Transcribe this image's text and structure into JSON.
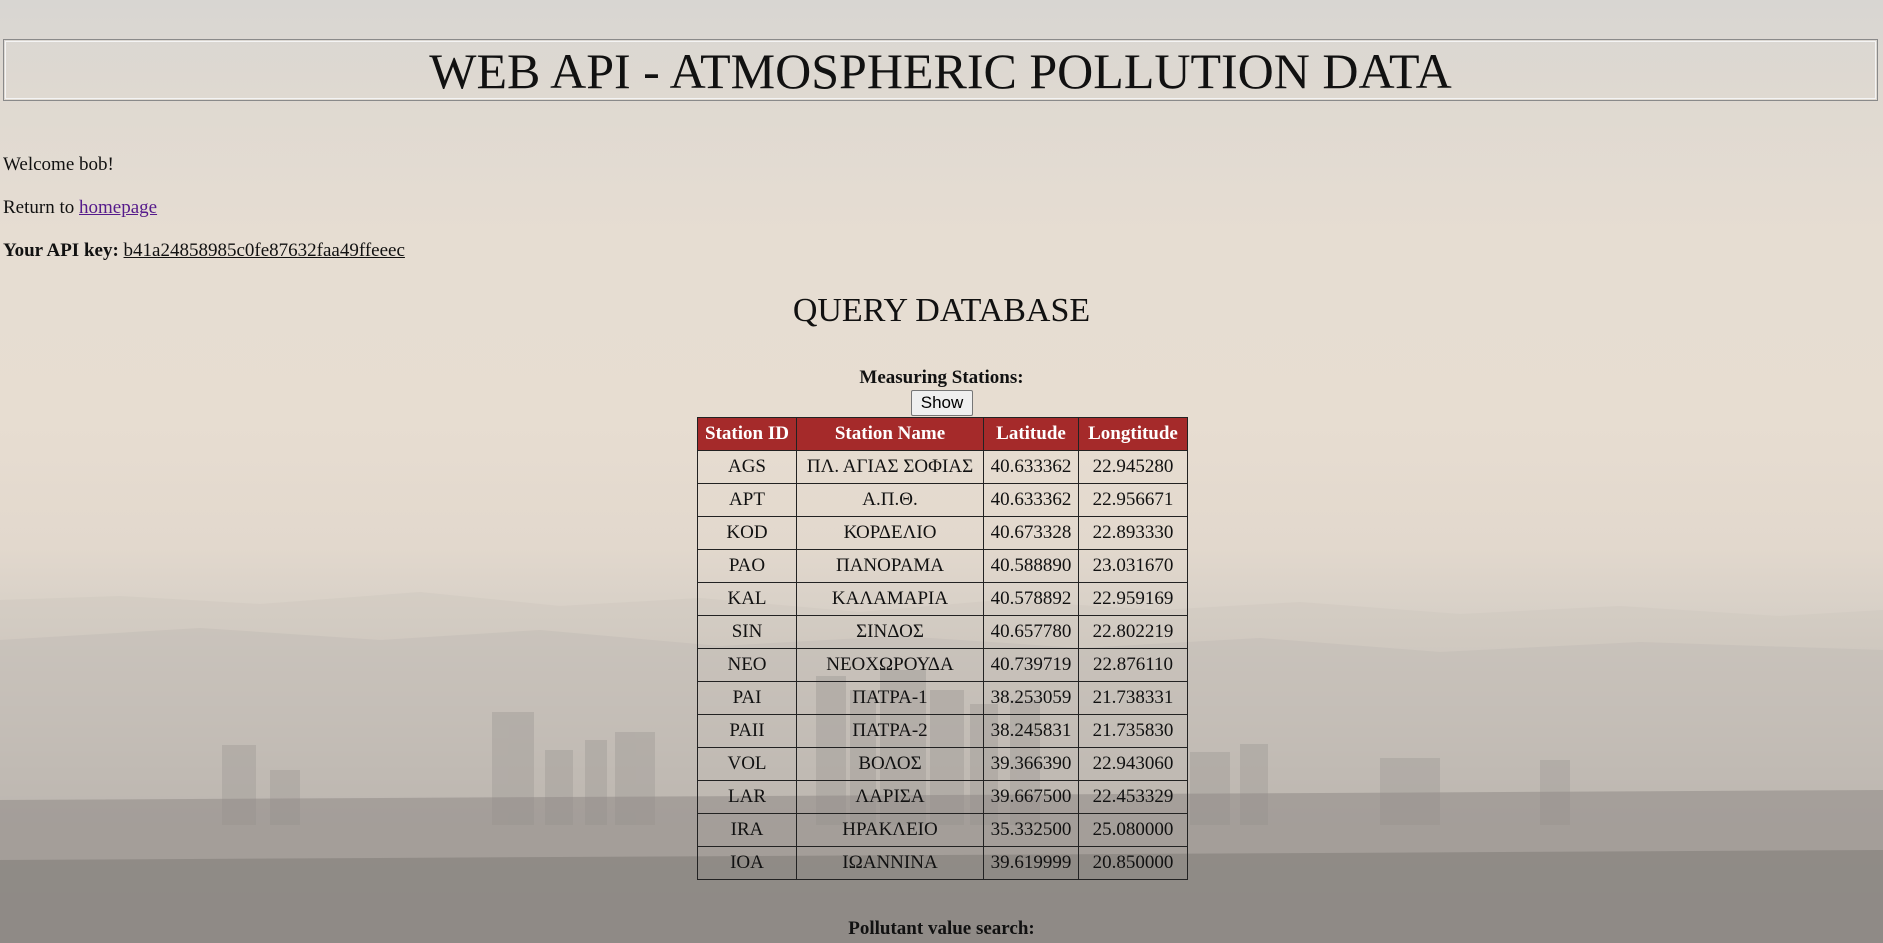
{
  "header": {
    "title": "WEB API - ATMOSPHERIC POLLUTION DATA"
  },
  "welcome": {
    "text": "Welcome bob!"
  },
  "return_line": {
    "prefix": "Return to ",
    "link_label": "homepage"
  },
  "api_key": {
    "label": "Your API key:",
    "value": "b41a24858985c0fe87632faa49ffeeec"
  },
  "query": {
    "title": "QUERY DATABASE",
    "stations_label": "Measuring Stations:",
    "show_label": "Show",
    "pollutant_label": "Pollutant value search:"
  },
  "table": {
    "headers": [
      "Station ID",
      "Station Name",
      "Latitude",
      "Longtitude"
    ],
    "rows": [
      [
        "AGS",
        "ΠΛ. ΑΓΙΑΣ ΣΟΦΙΑΣ",
        "40.633362",
        "22.945280"
      ],
      [
        "APT",
        "Α.Π.Θ.",
        "40.633362",
        "22.956671"
      ],
      [
        "KOD",
        "ΚΟΡΔΕΛΙΟ",
        "40.673328",
        "22.893330"
      ],
      [
        "PAO",
        "ΠΑΝΟΡΑΜΑ",
        "40.588890",
        "23.031670"
      ],
      [
        "KAL",
        "ΚΑΛΑΜΑΡΙΑ",
        "40.578892",
        "22.959169"
      ],
      [
        "SIN",
        "ΣΙΝΔΟΣ",
        "40.657780",
        "22.802219"
      ],
      [
        "NEO",
        "ΝΕΟΧΩΡΟΥΔΑ",
        "40.739719",
        "22.876110"
      ],
      [
        "PAI",
        "ΠΑΤΡΑ-1",
        "38.253059",
        "21.738331"
      ],
      [
        "PAII",
        "ΠΑΤΡΑ-2",
        "38.245831",
        "21.735830"
      ],
      [
        "VOL",
        "ΒΟΛΟΣ",
        "39.366390",
        "22.943060"
      ],
      [
        "LAR",
        "ΛΑΡΙΣΑ",
        "39.667500",
        "22.453329"
      ],
      [
        "IRA",
        "ΗΡΑΚΛΕΙΟ",
        "35.332500",
        "25.080000"
      ],
      [
        "IOA",
        "ΙΩΑΝΝΙΝΑ",
        "39.619999",
        "20.850000"
      ]
    ]
  },
  "colors": {
    "table_header_bg": "#a52a2a",
    "link": "#551a8b"
  },
  "background": {
    "icon": "smoggy-city-skyline-image"
  }
}
